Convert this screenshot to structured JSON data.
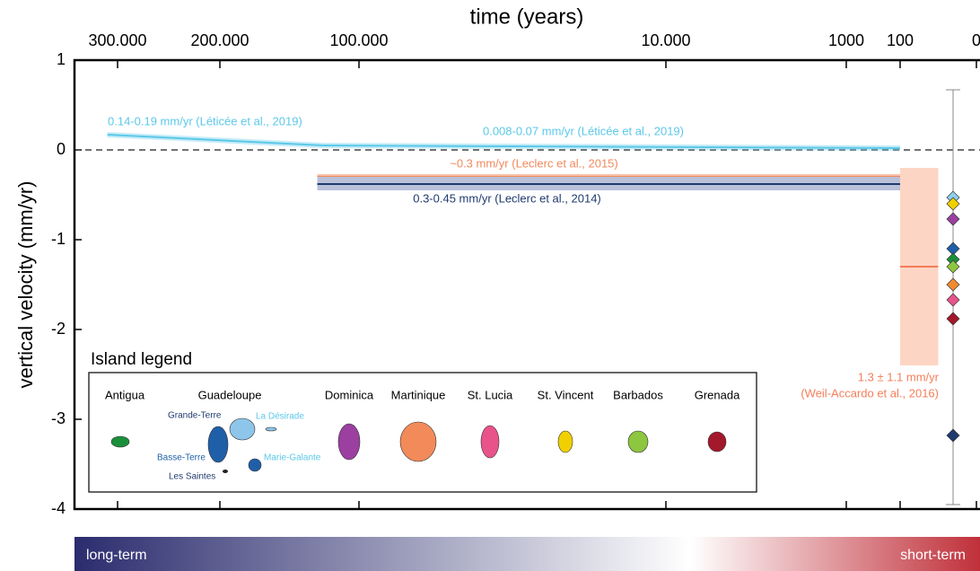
{
  "chart_data": {
    "type": "line",
    "title": "time (years)",
    "y_label": "vertical velocity (mm/yr)",
    "xticks": [
      {
        "value": 300000,
        "label": "300.000"
      },
      {
        "value": 200000,
        "label": "200.000"
      },
      {
        "value": 100000,
        "label": "100.000"
      },
      {
        "value": 10000,
        "label": "10.000"
      },
      1000,
      100,
      0
    ],
    "ylim": [
      -4,
      1
    ],
    "yticks": [
      1,
      0,
      -1,
      -2,
      -3,
      -4
    ],
    "hline": 0,
    "series": [
      {
        "label": "0.14-0.19 mm/yr (Léticée et al., 2019)",
        "color": "#5bc8e8",
        "x": [
          310000,
          126000
        ],
        "values": [
          0.17,
          0.05
        ]
      },
      {
        "label": "0.008-0.07 mm/yr (Léticée et al., 2019)",
        "color": "#5bc8e8",
        "x": [
          126000,
          100
        ],
        "values": [
          0.05,
          0.02
        ]
      },
      {
        "label": "~0.3 mm/yr (Leclerc et al., 2015)",
        "color": "#f08a5d",
        "band_color": "#f8c0a6",
        "x": [
          130000,
          100
        ],
        "values": [
          -0.3,
          -0.3
        ],
        "band": [
          -0.27,
          -0.33
        ]
      },
      {
        "label": "0.3-0.45 mm/yr (Leclerc et al., 2014)",
        "color": "#1f3a6e",
        "band_color": "#b8c1d9",
        "x": [
          130000,
          100
        ],
        "values": [
          -0.38,
          -0.38
        ],
        "band": [
          -0.3,
          -0.45
        ]
      }
    ],
    "box": {
      "x": [
        100,
        50
      ],
      "high": -0.2,
      "low": -2.4,
      "value": -1.3,
      "color": "#fdd5c4",
      "line_color": "#f47e5a",
      "labels": [
        "1.3 ± 1.1 mm/yr",
        "(Weil-Accardo et al., 2016)"
      ]
    },
    "island_rates": {
      "range": [
        -3.95,
        0.67
      ],
      "values": [
        -0.53,
        -0.6,
        -0.77,
        -1.1,
        -1.22,
        -1.3,
        -1.5,
        -1.67,
        -1.88,
        -3.18
      ],
      "colors": [
        "#8ed0ee",
        "#f0d000",
        "#9b3fa0",
        "#1f5fa8",
        "#1a8f3a",
        "#8dc63f",
        "#f28a30",
        "#e8538a",
        "#a3182b",
        "#1f3a6e"
      ]
    },
    "legend": {
      "title": "Island legend",
      "islands": [
        "Antigua",
        "Guadeloupe",
        "Dominica",
        "Martinique",
        "St. Lucia",
        "St. Vincent",
        "Barbados",
        "Grenada"
      ],
      "sublabels": [
        "Grande-Terre",
        "La Désirade",
        "Basse-Terre",
        "Marie-Galante",
        "Les Saintes"
      ]
    },
    "gradient_labels": [
      "long-term",
      "short-term"
    ]
  }
}
